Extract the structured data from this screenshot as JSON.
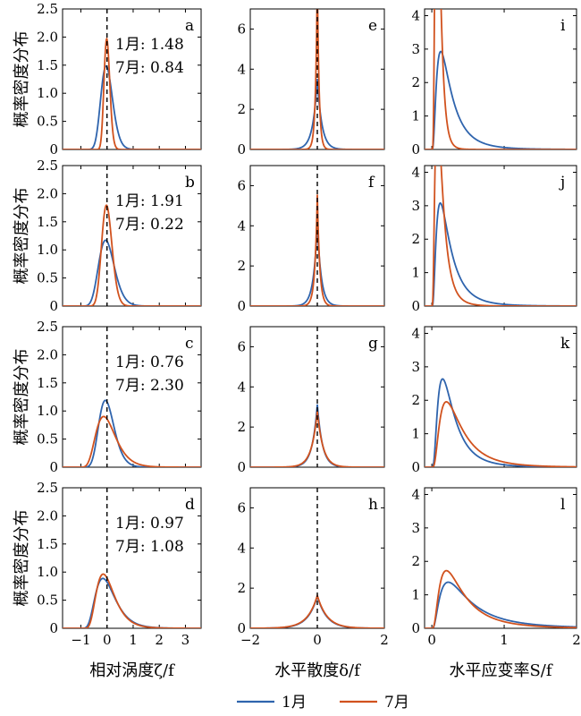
{
  "legend": [
    {
      "label": "1月",
      "color": "#2f64ad"
    },
    {
      "label": "7月",
      "color": "#d1521e"
    }
  ],
  "ylabel": "概率密度分布",
  "xlabels": [
    "相对涡度ζ/f",
    "水平散度δ/f",
    "水平应变率S/f"
  ],
  "chart_data": [
    {
      "type": "line",
      "panel": "a",
      "xlim": [
        -1.7,
        3.6
      ],
      "ylim": [
        0,
        2.5
      ],
      "xticks": [
        "−1",
        "0",
        "1",
        "2",
        "3"
      ],
      "yticks": [
        "0",
        "0.5",
        "1.0",
        "1.5",
        "2.0",
        "2.5"
      ],
      "annotations": [
        "1月: 1.48",
        "7月: 0.84"
      ],
      "vline": 0,
      "series": [
        {
          "name": "1月",
          "dist": "lognormal",
          "shift": 1.54,
          "sigma": 0.15,
          "area": 0.85
        },
        {
          "name": "7月",
          "dist": "lognormal",
          "shift": 1.12,
          "sigma": 0.1,
          "area": 0.55
        }
      ]
    },
    {
      "type": "line",
      "panel": "e",
      "xlim": [
        -2,
        2
      ],
      "ylim": [
        0,
        7
      ],
      "xticks": [
        "−2",
        "0",
        "2"
      ],
      "yticks": [
        "0",
        "2",
        "4",
        "6"
      ],
      "vline": 0,
      "series": [
        {
          "name": "1月",
          "dist": "laplace",
          "mu": 0,
          "b": 0.135,
          "area": 0.95
        },
        {
          "name": "7月",
          "dist": "laplace",
          "mu": 0,
          "b": 0.052,
          "area": 0.9
        }
      ]
    },
    {
      "type": "line",
      "panel": "i",
      "xlim": [
        -0.1,
        2
      ],
      "ylim": [
        0,
        4.2
      ],
      "xticks": [
        "0",
        "1",
        "2"
      ],
      "yticks": [
        "0",
        "1",
        "2",
        "3",
        "4"
      ],
      "series": [
        {
          "name": "1月",
          "dist": "lognormal",
          "mu": -1.53,
          "sigma": 0.75,
          "area": 0.9
        },
        {
          "name": "7月",
          "dist": "lognormal",
          "mu": -2.42,
          "sigma": 0.51,
          "area": 0.9
        }
      ]
    },
    {
      "type": "line",
      "panel": "b",
      "xlim": [
        -1.7,
        3.6
      ],
      "ylim": [
        0,
        2.5
      ],
      "xticks": [
        "−1",
        "0",
        "1",
        "2",
        "3"
      ],
      "yticks": [
        "0",
        "0.5",
        "1.0",
        "1.5",
        "2.0",
        "2.5"
      ],
      "annotations": [
        "1月: 1.91",
        "7月: 0.22"
      ],
      "vline": 0,
      "series": [
        {
          "name": "1月",
          "dist": "lognormal",
          "shift": 1.73,
          "sigma": 0.18,
          "area": 0.9
        },
        {
          "name": "7月",
          "dist": "lognormal",
          "shift": 1.83,
          "sigma": 0.11,
          "area": 0.9
        }
      ]
    },
    {
      "type": "line",
      "panel": "f",
      "xlim": [
        -2,
        2
      ],
      "ylim": [
        0,
        7
      ],
      "xticks": [
        "−2",
        "0",
        "2"
      ],
      "yticks": [
        "0",
        "2",
        "4",
        "6"
      ],
      "vline": 0,
      "series": [
        {
          "name": "1月",
          "dist": "laplace",
          "mu": 0,
          "b": 0.117,
          "area": 0.95
        },
        {
          "name": "7月",
          "dist": "laplace",
          "mu": 0,
          "b": 0.072,
          "area": 0.8
        }
      ]
    },
    {
      "type": "line",
      "panel": "j",
      "xlim": [
        -0.1,
        2
      ],
      "ylim": [
        0,
        4.2
      ],
      "xticks": [
        "0",
        "1",
        "2"
      ],
      "yticks": [
        "0",
        "1",
        "2",
        "3",
        "4"
      ],
      "series": [
        {
          "name": "1月",
          "dist": "lognormal",
          "mu": -1.58,
          "sigma": 0.75,
          "area": 0.9
        },
        {
          "name": "7月",
          "dist": "lognormal",
          "mu": -2.14,
          "sigma": 0.66,
          "area": 0.9
        }
      ]
    },
    {
      "type": "line",
      "panel": "c",
      "xlim": [
        -1.7,
        3.6
      ],
      "ylim": [
        0,
        2.5
      ],
      "xticks": [
        "−1",
        "0",
        "1",
        "2",
        "3"
      ],
      "yticks": [
        "0",
        "0.5",
        "1.0",
        "1.5",
        "2.0",
        "2.5"
      ],
      "annotations": [
        "1月: 0.76",
        "7月: 2.30"
      ],
      "vline": 0,
      "series": [
        {
          "name": "1月",
          "dist": "lognormal",
          "shift": 1.47,
          "sigma": 0.21,
          "area": 0.9
        },
        {
          "name": "7月",
          "dist": "lognormal",
          "shift": 1.31,
          "sigma": 0.32,
          "area": 0.9
        }
      ]
    },
    {
      "type": "line",
      "panel": "g",
      "xlim": [
        -2,
        2
      ],
      "ylim": [
        0,
        7
      ],
      "xticks": [
        "−2",
        "0",
        "2"
      ],
      "yticks": [
        "0",
        "2",
        "4",
        "6"
      ],
      "vline": 0,
      "series": [
        {
          "name": "1月",
          "dist": "laplace",
          "mu": 0,
          "b": 0.152,
          "area": 0.95
        },
        {
          "name": "7月",
          "dist": "laplace",
          "mu": 0,
          "b": 0.17,
          "area": 0.95
        }
      ]
    },
    {
      "type": "line",
      "panel": "k",
      "xlim": [
        -0.1,
        2
      ],
      "ylim": [
        0,
        4.2
      ],
      "xticks": [
        "0",
        "1",
        "2"
      ],
      "yticks": [
        "0",
        "1",
        "2",
        "3",
        "4"
      ],
      "series": [
        {
          "name": "1月",
          "dist": "lognormal",
          "mu": -1.4,
          "sigma": 0.71,
          "area": 0.9
        },
        {
          "name": "7月",
          "dist": "lognormal",
          "mu": -1.1,
          "sigma": 0.71,
          "area": 0.9
        }
      ]
    },
    {
      "type": "line",
      "panel": "d",
      "xlim": [
        -1.7,
        3.6
      ],
      "ylim": [
        0,
        2.5
      ],
      "xticks": [
        "−1",
        "0",
        "1",
        "2",
        "3"
      ],
      "yticks": [
        "0",
        "0.5",
        "1.0",
        "1.5",
        "2.0",
        "2.5"
      ],
      "annotations": [
        "1月: 0.97",
        "7月: 1.08"
      ],
      "vline": 0,
      "series": [
        {
          "name": "1月",
          "dist": "lognormal",
          "shift": 1.12,
          "sigma": 0.39,
          "area": 0.9
        },
        {
          "name": "7月",
          "dist": "lognormal",
          "shift": 1.03,
          "sigma": 0.39,
          "area": 0.9
        }
      ]
    },
    {
      "type": "line",
      "panel": "h",
      "xlim": [
        -2,
        2
      ],
      "ylim": [
        0,
        7
      ],
      "xticks": [
        "−2",
        "0",
        "2"
      ],
      "yticks": [
        "0",
        "2",
        "4",
        "6"
      ],
      "vline": 0,
      "series": [
        {
          "name": "1月",
          "dist": "laplace",
          "mu": 0,
          "b": 0.28,
          "area": 0.9
        },
        {
          "name": "7月",
          "dist": "laplace",
          "mu": 0,
          "b": 0.29,
          "area": 0.95
        }
      ]
    },
    {
      "type": "line",
      "panel": "l",
      "xlim": [
        -0.1,
        2
      ],
      "ylim": [
        0,
        4.2
      ],
      "xticks": [
        "0",
        "1",
        "2"
      ],
      "yticks": [
        "0",
        "1",
        "2",
        "3",
        "4"
      ],
      "series": [
        {
          "name": "1月",
          "dist": "lognormal",
          "mu": -0.81,
          "sigma": 0.82,
          "area": 0.9
        },
        {
          "name": "7月",
          "dist": "lognormal",
          "mu": -1.01,
          "sigma": 0.77,
          "area": 0.9
        }
      ]
    }
  ]
}
